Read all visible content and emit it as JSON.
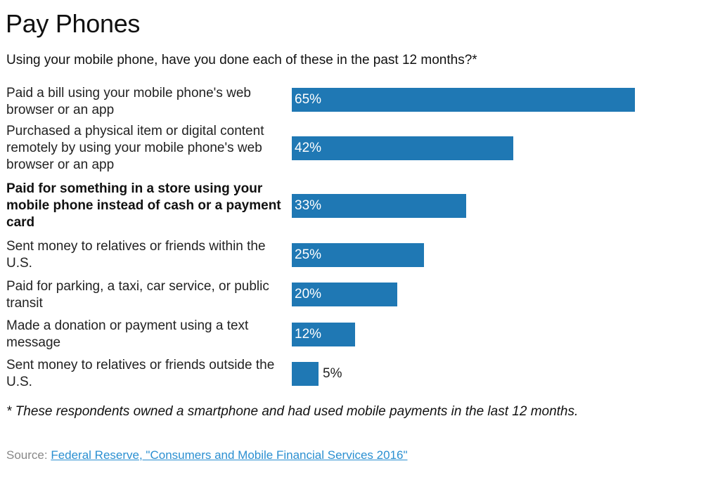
{
  "header": {
    "title": "Pay Phones",
    "subtitle": "Using your mobile phone, have you done each of these in the past 12 months?*"
  },
  "footnote": "* These respondents owned a smartphone and had used mobile payments in the last 12 months.",
  "source": {
    "prefix": "Source: ",
    "link_text": "Federal Reserve, \"Consumers and Mobile Financial Services 2016\""
  },
  "colors": {
    "bar": "#1f78b4",
    "link": "#2a8fd1"
  },
  "chart_data": {
    "type": "bar",
    "orientation": "horizontal",
    "categories": [
      "Paid a bill using your mobile phone's web browser or an app",
      "Purchased a physical item or digital content remotely by using your mobile phone's web browser or an app",
      "Paid for something in a store using your mobile phone instead of cash or a payment card",
      "Sent money to relatives or friends within the U.S.",
      "Paid for parking, a taxi, car service, or public transit",
      "Made a donation or payment using a text message",
      "Sent money to relatives or friends outside the U.S."
    ],
    "values": [
      65,
      42,
      33,
      25,
      20,
      12,
      5
    ],
    "value_labels": [
      "65%",
      "42%",
      "33%",
      "25%",
      "20%",
      "12%",
      "5%"
    ],
    "highlighted_index": 2,
    "unit": "%",
    "xlim": [
      0,
      65
    ],
    "grid": false,
    "legend": "none"
  }
}
